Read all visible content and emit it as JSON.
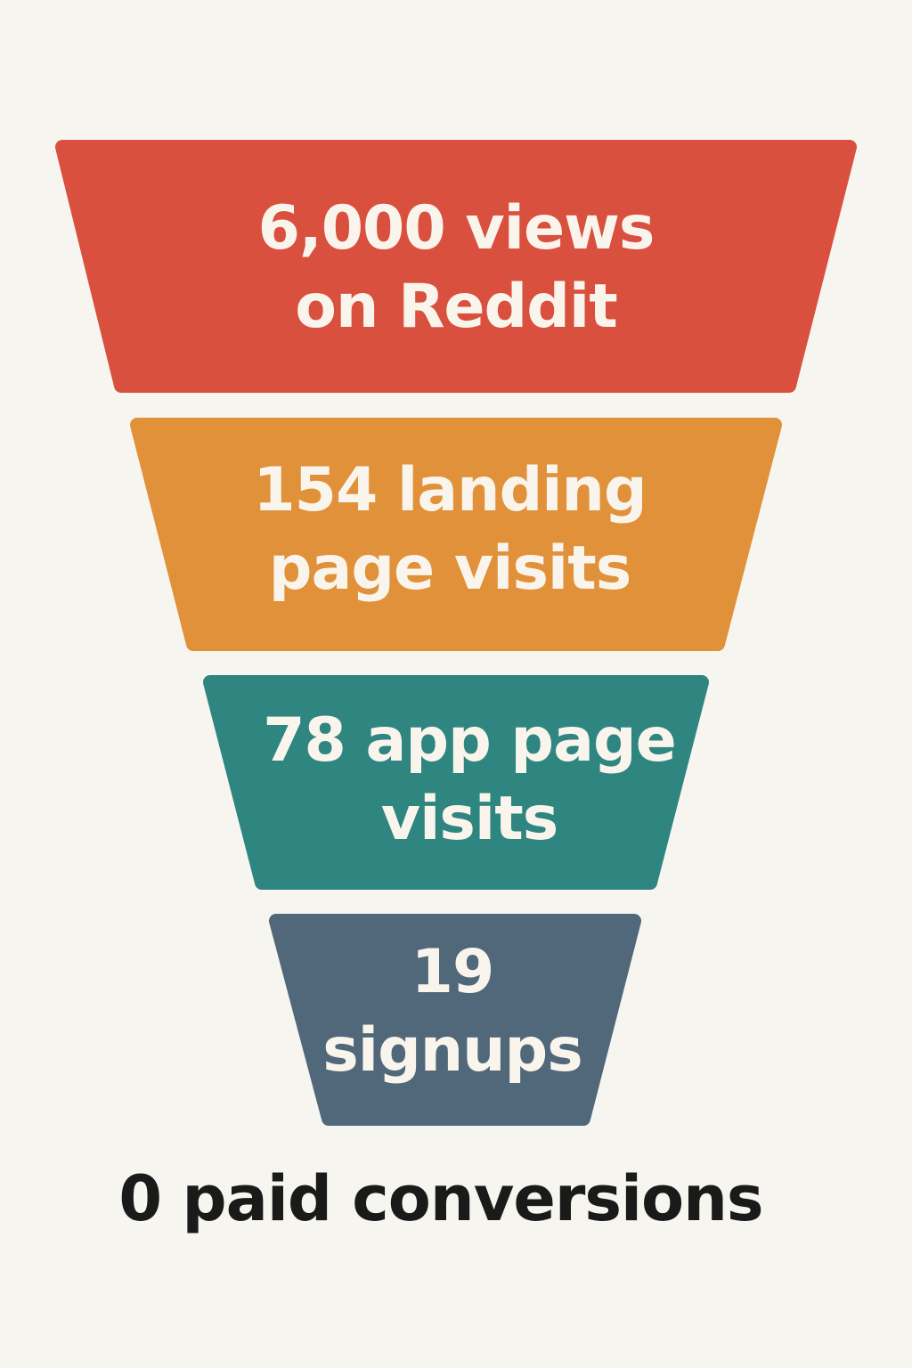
{
  "funnel": {
    "stages": [
      {
        "lines": [
          "6,000 views",
          "on Reddit"
        ],
        "value": 6000,
        "color": "#D9503E"
      },
      {
        "lines": [
          "154 landing",
          "page visits"
        ],
        "value": 154,
        "color": "#E0913A"
      },
      {
        "lines": [
          "78 app page",
          "visits"
        ],
        "value": 78,
        "color": "#2F8580"
      },
      {
        "lines": [
          "19",
          "signups"
        ],
        "value": 19,
        "color": "#50687A"
      }
    ],
    "footer": "0 paid conversions",
    "background": "#F7F5EF"
  }
}
